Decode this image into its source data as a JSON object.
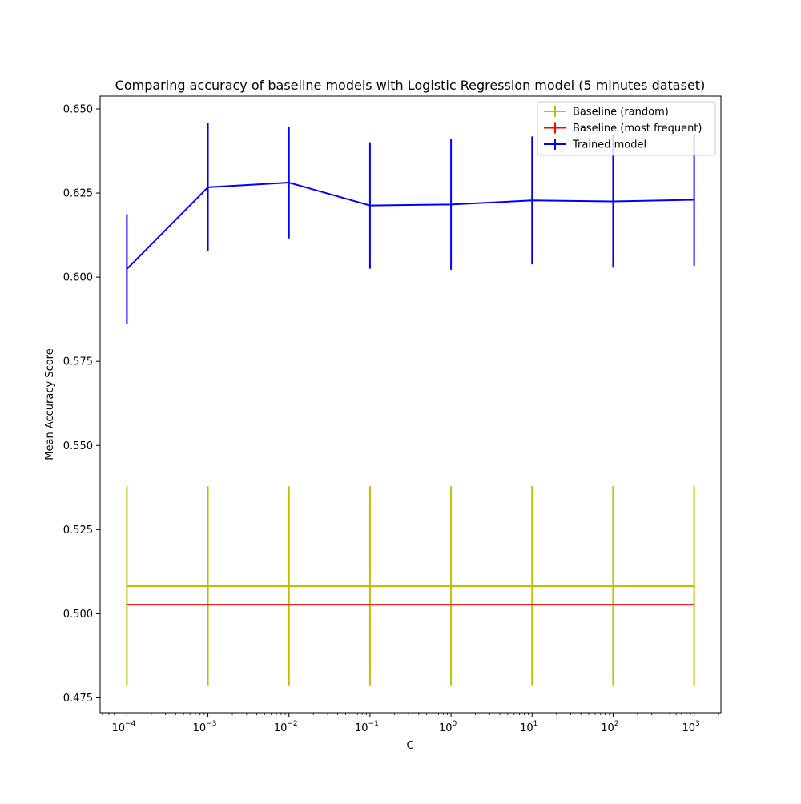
{
  "chart_data": {
    "type": "line",
    "title": "Comparing accuracy of baseline models with Logistic Regression model (5 minutes dataset)",
    "xlabel": "C",
    "ylabel": "Mean Accuracy Score",
    "xscale": "log",
    "x": [
      0.0001,
      0.001,
      0.01,
      0.1,
      1,
      10,
      100,
      1000
    ],
    "xlim_exponent": [
      -4.33,
      3.33
    ],
    "ylim": [
      0.4706,
      0.6538
    ],
    "yticks": [
      0.475,
      0.5,
      0.525,
      0.55,
      0.575,
      0.6,
      0.625,
      0.65
    ],
    "ytick_labels": [
      "0.475",
      "0.500",
      "0.525",
      "0.550",
      "0.575",
      "0.600",
      "0.625",
      "0.650"
    ],
    "xticks_exponents": [
      "-4",
      "-3",
      "-2",
      "-1",
      "0",
      "1",
      "2",
      "3"
    ],
    "xtick_base": "10",
    "grid": false,
    "legend_position": "top-right",
    "series": [
      {
        "name": "Baseline (random)",
        "color": "#bfbf00",
        "values": [
          0.5082,
          0.5082,
          0.5082,
          0.5082,
          0.5082,
          0.5082,
          0.5082,
          0.5082
        ],
        "errors": [
          0.0297,
          0.0297,
          0.0297,
          0.0297,
          0.0297,
          0.0297,
          0.0297,
          0.0297
        ]
      },
      {
        "name": "Baseline (most frequent)",
        "color": "#ff0000",
        "values": [
          0.5027,
          0.5027,
          0.5027,
          0.5027,
          0.5027,
          0.5027,
          0.5027,
          0.5027
        ],
        "errors": [
          0,
          0,
          0,
          0,
          0,
          0,
          0,
          0
        ]
      },
      {
        "name": "Trained model",
        "color": "#0000ff",
        "values": [
          0.6024,
          0.6267,
          0.6281,
          0.6213,
          0.6216,
          0.6228,
          0.6225,
          0.623
        ],
        "errors": [
          0.0163,
          0.019,
          0.0166,
          0.0188,
          0.0194,
          0.019,
          0.0197,
          0.0196
        ]
      }
    ]
  }
}
